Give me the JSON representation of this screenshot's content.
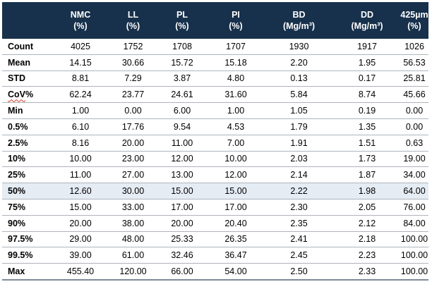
{
  "headers": [
    {
      "line1": "",
      "line2": ""
    },
    {
      "line1": "NMC",
      "line2": "(%)"
    },
    {
      "line1": "LL",
      "line2": "(%)"
    },
    {
      "line1": "PL",
      "line2": "(%)"
    },
    {
      "line1": "PI",
      "line2": "(%)"
    },
    {
      "line1": "BD",
      "line2": "(Mg/m³)"
    },
    {
      "line1": "DD",
      "line2": "(Mg/m³)"
    },
    {
      "line1": "425µm",
      "line2": "(%)"
    }
  ],
  "rows": [
    {
      "label": "Count",
      "values": [
        "4025",
        "1752",
        "1708",
        "1707",
        "1930",
        "1917",
        "1026"
      ]
    },
    {
      "label": "Mean",
      "values": [
        "14.15",
        "30.66",
        "15.72",
        "15.18",
        "2.20",
        "1.95",
        "56.53"
      ]
    },
    {
      "label": "STD",
      "values": [
        "8.81",
        "7.29",
        "3.87",
        "4.80",
        "0.13",
        "0.17",
        "25.81"
      ]
    },
    {
      "label": "CoV%",
      "label_squiggle": "CoV",
      "label_tail": "%",
      "values": [
        "62.24",
        "23.77",
        "24.61",
        "31.60",
        "5.84",
        "8.74",
        "45.66"
      ]
    },
    {
      "label": "Min",
      "values": [
        "1.00",
        "0.00",
        "6.00",
        "1.00",
        "1.05",
        "0.19",
        "0.00"
      ]
    },
    {
      "label": "0.5%",
      "values": [
        "6.10",
        "17.76",
        "9.54",
        "4.53",
        "1.79",
        "1.35",
        "0.00"
      ]
    },
    {
      "label": "2.5%",
      "values": [
        "8.16",
        "20.00",
        "11.00",
        "7.00",
        "1.91",
        "1.51",
        "0.63"
      ]
    },
    {
      "label": "10%",
      "values": [
        "10.00",
        "23.00",
        "12.00",
        "10.00",
        "2.03",
        "1.73",
        "19.00"
      ]
    },
    {
      "label": "25%",
      "values": [
        "11.00",
        "27.00",
        "13.00",
        "12.00",
        "2.14",
        "1.87",
        "34.00"
      ]
    },
    {
      "label": "50%",
      "highlight": true,
      "values": [
        "12.60",
        "30.00",
        "15.00",
        "15.00",
        "2.22",
        "1.98",
        "64.00"
      ]
    },
    {
      "label": "75%",
      "values": [
        "15.00",
        "33.00",
        "17.00",
        "17.00",
        "2.30",
        "2.05",
        "76.00"
      ]
    },
    {
      "label": "90%",
      "values": [
        "20.00",
        "38.00",
        "20.00",
        "20.40",
        "2.35",
        "2.12",
        "84.00"
      ]
    },
    {
      "label": "97.5%",
      "values": [
        "29.00",
        "48.00",
        "25.33",
        "26.35",
        "2.41",
        "2.18",
        "100.00"
      ]
    },
    {
      "label": "99.5%",
      "values": [
        "39.00",
        "61.00",
        "32.46",
        "36.47",
        "2.45",
        "2.23",
        "100.00"
      ]
    },
    {
      "label": "Max",
      "values": [
        "455.40",
        "120.00",
        "66.00",
        "54.00",
        "2.50",
        "2.33",
        "100.00"
      ]
    }
  ],
  "colors": {
    "header_bg": "#17304b",
    "header_text": "#ffffff",
    "highlight_row": "#e6ecf4",
    "row_border": "#aeb4bb",
    "spellcheck_squiggle": "#d23a2a"
  }
}
